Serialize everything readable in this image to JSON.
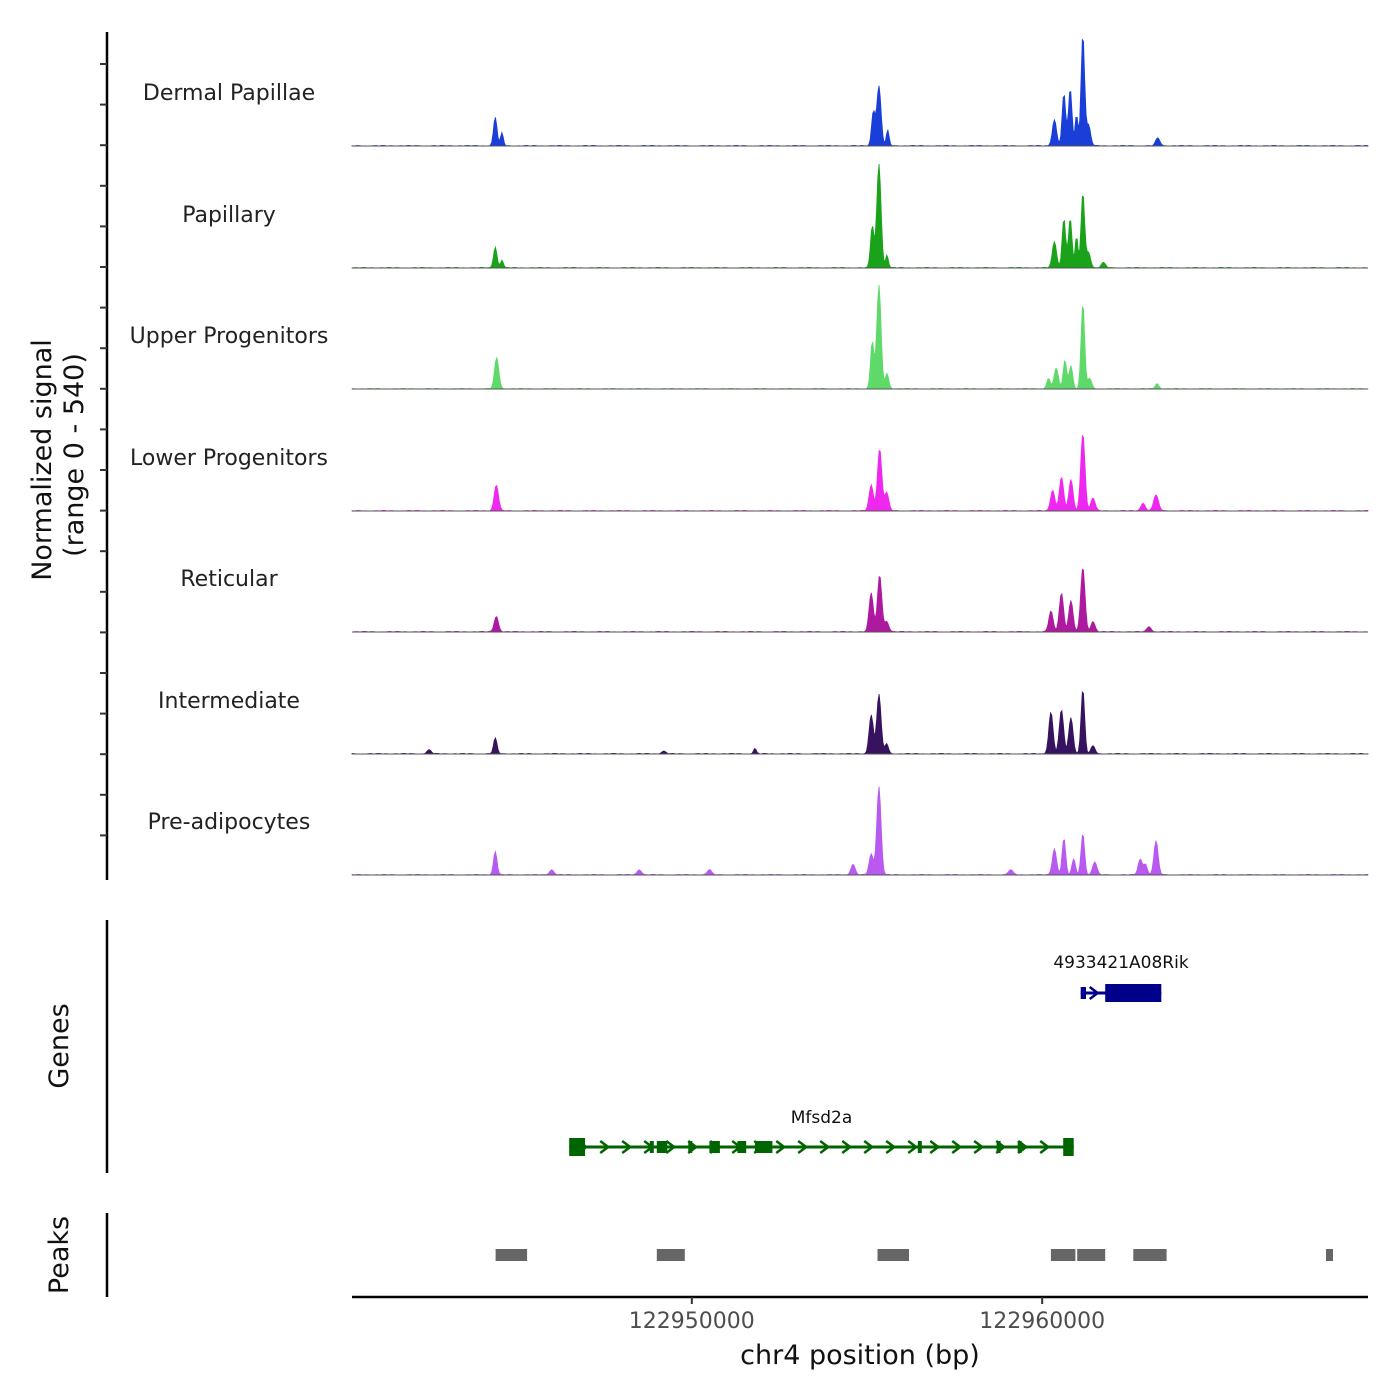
{
  "chart_data": {
    "type": "area",
    "title": "",
    "chromosome": "chr4",
    "xlabel": "chr4 position (bp)",
    "ylabel_line1": "Normalized signal",
    "ylabel_line2": "(range 0 - 540)",
    "signal_range": [
      0,
      540
    ],
    "xlim": [
      122940300,
      122969300
    ],
    "x_ticks": [
      122950000,
      122960000
    ],
    "x_tick_labels": [
      "122950000",
      "122960000"
    ],
    "genes_axis_label": "Genes",
    "peaks_axis_label": "Peaks",
    "tracks": [
      {
        "name": "Dermal Papillae",
        "color": "#1a3fd9",
        "peaks": [
          [
            122944390,
            110,
            50
          ],
          [
            122944580,
            50,
            40
          ],
          [
            122955340,
            230,
            60
          ],
          [
            122955180,
            130,
            50
          ],
          [
            122955590,
            60,
            40
          ],
          [
            122960350,
            100,
            60
          ],
          [
            122960620,
            200,
            50
          ],
          [
            122960800,
            220,
            50
          ],
          [
            122960980,
            120,
            40
          ],
          [
            122961160,
            430,
            50
          ],
          [
            122961320,
            80,
            60
          ],
          [
            122963300,
            30,
            60
          ]
        ]
      },
      {
        "name": "Papillary",
        "color": "#1aa31a",
        "peaks": [
          [
            122944390,
            80,
            50
          ],
          [
            122944580,
            30,
            40
          ],
          [
            122955340,
            400,
            60
          ],
          [
            122955150,
            160,
            50
          ],
          [
            122955570,
            50,
            40
          ],
          [
            122960350,
            100,
            60
          ],
          [
            122960620,
            190,
            50
          ],
          [
            122960800,
            190,
            50
          ],
          [
            122960980,
            120,
            40
          ],
          [
            122961160,
            290,
            50
          ],
          [
            122961320,
            60,
            60
          ],
          [
            122961750,
            20,
            60
          ]
        ]
      },
      {
        "name": "Upper Progenitors",
        "color": "#5ed96a",
        "peaks": [
          [
            122944430,
            120,
            60
          ],
          [
            122955340,
            400,
            60
          ],
          [
            122955150,
            180,
            50
          ],
          [
            122955570,
            60,
            50
          ],
          [
            122960180,
            40,
            50
          ],
          [
            122960400,
            80,
            60
          ],
          [
            122960650,
            110,
            50
          ],
          [
            122960820,
            90,
            50
          ],
          [
            122961160,
            330,
            50
          ],
          [
            122961350,
            40,
            60
          ],
          [
            122963280,
            20,
            50
          ]
        ]
      },
      {
        "name": "Lower Progenitors",
        "color": "#ef28ef",
        "peaks": [
          [
            122944420,
            100,
            60
          ],
          [
            122955360,
            240,
            60
          ],
          [
            122955120,
            100,
            60
          ],
          [
            122955560,
            70,
            60
          ],
          [
            122960300,
            80,
            60
          ],
          [
            122960550,
            130,
            60
          ],
          [
            122960820,
            120,
            60
          ],
          [
            122961160,
            300,
            60
          ],
          [
            122961450,
            50,
            60
          ],
          [
            122963250,
            60,
            70
          ],
          [
            122962880,
            30,
            60
          ]
        ]
      },
      {
        "name": "Reticular",
        "color": "#ad1aa0",
        "peaks": [
          [
            122944420,
            60,
            60
          ],
          [
            122955360,
            220,
            60
          ],
          [
            122955120,
            150,
            60
          ],
          [
            122955560,
            40,
            60
          ],
          [
            122960250,
            80,
            60
          ],
          [
            122960550,
            150,
            60
          ],
          [
            122960820,
            120,
            60
          ],
          [
            122961160,
            250,
            60
          ],
          [
            122961450,
            40,
            60
          ],
          [
            122963050,
            20,
            60
          ]
        ]
      },
      {
        "name": "Intermediate",
        "color": "#37125f",
        "peaks": [
          [
            122944390,
            60,
            50
          ],
          [
            122955340,
            230,
            60
          ],
          [
            122955120,
            150,
            60
          ],
          [
            122955560,
            40,
            50
          ],
          [
            122960250,
            160,
            60
          ],
          [
            122960550,
            170,
            60
          ],
          [
            122960820,
            140,
            60
          ],
          [
            122961160,
            250,
            50
          ],
          [
            122961450,
            30,
            60
          ],
          [
            122942500,
            15,
            60
          ],
          [
            122949200,
            10,
            60
          ],
          [
            122951800,
            20,
            40
          ]
        ]
      },
      {
        "name": "Pre-adipocytes",
        "color": "#b85af0",
        "peaks": [
          [
            122944390,
            90,
            50
          ],
          [
            122955340,
            340,
            60
          ],
          [
            122955120,
            80,
            60
          ],
          [
            122954600,
            40,
            60
          ],
          [
            122960350,
            100,
            60
          ],
          [
            122960620,
            140,
            50
          ],
          [
            122961160,
            160,
            50
          ],
          [
            122960900,
            60,
            50
          ],
          [
            122961500,
            50,
            60
          ],
          [
            122962800,
            60,
            60
          ],
          [
            122963250,
            130,
            60
          ],
          [
            122962950,
            40,
            50
          ],
          [
            122946000,
            20,
            60
          ],
          [
            122948500,
            20,
            60
          ],
          [
            122950500,
            20,
            60
          ],
          [
            122959100,
            20,
            60
          ]
        ]
      }
    ],
    "genes": [
      {
        "name": "4933421A08Rik",
        "strand": "+",
        "color": "#00008b",
        "start": 122961100,
        "end": 122963400,
        "exons": [
          [
            122961100,
            122961250,
            "small"
          ],
          [
            122961800,
            122963400,
            "large"
          ]
        ]
      },
      {
        "name": "Mfsd2a",
        "strand": "-",
        "color": "#006400",
        "start": 122946500,
        "end": 122960900,
        "exons": [
          [
            122946500,
            122946950,
            "large"
          ],
          [
            122948800,
            122948870,
            "small"
          ],
          [
            122949000,
            122949300,
            "small"
          ],
          [
            122949900,
            122949970,
            "small"
          ],
          [
            122950500,
            122950800,
            "small"
          ],
          [
            122951300,
            122951550,
            "small"
          ],
          [
            122951800,
            122952300,
            "small"
          ],
          [
            122956450,
            122956550,
            "small"
          ],
          [
            122958700,
            122958800,
            "small"
          ],
          [
            122959300,
            122959380,
            "small"
          ],
          [
            122960600,
            122960900,
            "large"
          ]
        ]
      }
    ],
    "peak_regions": [
      [
        122944400,
        122945300
      ],
      [
        122949000,
        122949800
      ],
      [
        122955300,
        122956200
      ],
      [
        122960250,
        122960950
      ],
      [
        122961000,
        122961800
      ],
      [
        122962600,
        122963550
      ],
      [
        122968100,
        122968300
      ]
    ]
  }
}
